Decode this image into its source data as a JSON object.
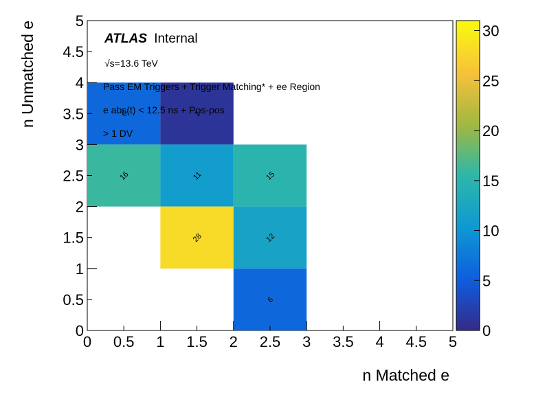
{
  "chart_data": {
    "type": "heatmap",
    "xlabel": "n Matched e",
    "ylabel": "n Unmatched e",
    "xlim": [
      0,
      5
    ],
    "ylim": [
      0,
      5
    ],
    "zlim": [
      0,
      31
    ],
    "x_ticks": [
      "0",
      "0.5",
      "1",
      "1.5",
      "2",
      "2.5",
      "3",
      "3.5",
      "4",
      "4.5",
      "5"
    ],
    "y_ticks": [
      "0",
      "0.5",
      "1",
      "1.5",
      "2",
      "2.5",
      "3",
      "3.5",
      "4",
      "4.5",
      "5"
    ],
    "z_ticks": [
      "0",
      "5",
      "10",
      "15",
      "20",
      "25",
      "30"
    ],
    "cells": [
      {
        "x": 0,
        "y": 3,
        "value": 6,
        "label": "6"
      },
      {
        "x": 1,
        "y": 3,
        "value": 1,
        "label": "1"
      },
      {
        "x": 0,
        "y": 2,
        "value": 16,
        "label": "16"
      },
      {
        "x": 1,
        "y": 2,
        "value": 11,
        "label": "11"
      },
      {
        "x": 2,
        "y": 2,
        "value": 15,
        "label": "15"
      },
      {
        "x": 1,
        "y": 1,
        "value": 28,
        "label": "28"
      },
      {
        "x": 2,
        "y": 1,
        "value": 12,
        "label": "12"
      },
      {
        "x": 2,
        "y": 0,
        "value": 6,
        "label": "6"
      }
    ],
    "annotations": {
      "atlas_bold": "ATLAS",
      "atlas_rest": "Internal",
      "energy": "√s=13.6 TeV",
      "line1": "Pass EM Triggers + Trigger Matching* + ee Region",
      "line2": "e abs(t) < 12.5 ns + Pos-pos",
      "line3": "> 1 DV"
    }
  }
}
